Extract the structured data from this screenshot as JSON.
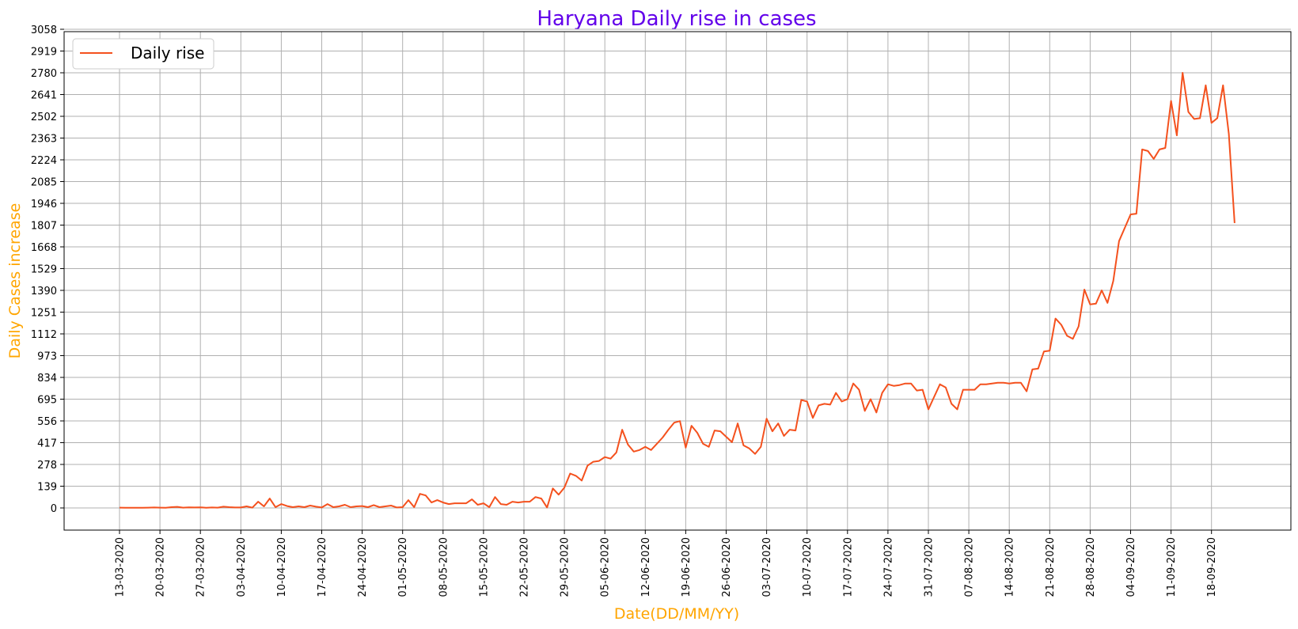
{
  "chart_data": {
    "type": "line",
    "title": "Haryana Daily rise in cases",
    "xlabel": "Date(DD/MM/YY)",
    "ylabel": "Daily Cases increase",
    "ylim": [
      -55,
      3058
    ],
    "yticks": [
      "0",
      "139",
      "278",
      "417",
      "556",
      "695",
      "834",
      "973",
      "1112",
      "1251",
      "1390",
      "1529",
      "1668",
      "1807",
      "1946",
      "2085",
      "2224",
      "2363",
      "2502",
      "2641",
      "2780",
      "2919",
      "3058"
    ],
    "xticks": [
      "13-03-2020",
      "20-03-2020",
      "27-03-2020",
      "03-04-2020",
      "10-04-2020",
      "17-04-2020",
      "24-04-2020",
      "01-05-2020",
      "08-05-2020",
      "15-05-2020",
      "22-05-2020",
      "29-05-2020",
      "05-06-2020",
      "12-06-2020",
      "19-06-2020",
      "26-06-2020",
      "03-07-2020",
      "10-07-2020",
      "17-07-2020",
      "24-07-2020",
      "31-07-2020",
      "07-08-2020",
      "14-08-2020",
      "21-08-2020",
      "28-08-2020",
      "04-09-2020",
      "11-09-2020",
      "18-09-2020"
    ],
    "grid": true,
    "legend_position": "top-left",
    "colors": {
      "line": "#f4511e",
      "title": "#6200ea",
      "axis_label": "#ffa500",
      "grid": "#b0b0b0"
    },
    "series": [
      {
        "name": "Daily rise",
        "x_start": "13-03-2020",
        "values": [
          2,
          1,
          1,
          1,
          1,
          2,
          3,
          2,
          1,
          5,
          7,
          2,
          4,
          3,
          4,
          1,
          3,
          2,
          8,
          5,
          3,
          3,
          10,
          2,
          40,
          10,
          60,
          5,
          25,
          12,
          5,
          10,
          5,
          15,
          8,
          3,
          25,
          5,
          10,
          20,
          5,
          10,
          12,
          5,
          18,
          5,
          10,
          15,
          3,
          5,
          50,
          5,
          90,
          80,
          35,
          50,
          35,
          25,
          30,
          30,
          30,
          55,
          20,
          30,
          5,
          70,
          25,
          20,
          40,
          35,
          40,
          40,
          70,
          60,
          3,
          125,
          85,
          130,
          220,
          205,
          175,
          270,
          295,
          300,
          325,
          315,
          355,
          500,
          405,
          360,
          370,
          390,
          370,
          410,
          450,
          500,
          545,
          555,
          385,
          525,
          480,
          410,
          390,
          495,
          490,
          455,
          420,
          540,
          400,
          380,
          345,
          390,
          570,
          490,
          540,
          460,
          500,
          495,
          690,
          680,
          575,
          655,
          665,
          660,
          735,
          680,
          695,
          795,
          755,
          620,
          695,
          610,
          735,
          790,
          780,
          785,
          795,
          795,
          750,
          755,
          630,
          710,
          790,
          770,
          665,
          630,
          755,
          755,
          755,
          790,
          790,
          795,
          800,
          800,
          795,
          800,
          800,
          745,
          885,
          890,
          1000,
          1005,
          1210,
          1170,
          1100,
          1080,
          1160,
          1395,
          1300,
          1305,
          1390,
          1310,
          1450,
          1705,
          1790,
          1875,
          1880,
          2290,
          2280,
          2230,
          2290,
          2300,
          2600,
          2380,
          2780,
          2530,
          2485,
          2490,
          2700,
          2460,
          2490,
          2700,
          2390,
          1820
        ]
      }
    ]
  }
}
